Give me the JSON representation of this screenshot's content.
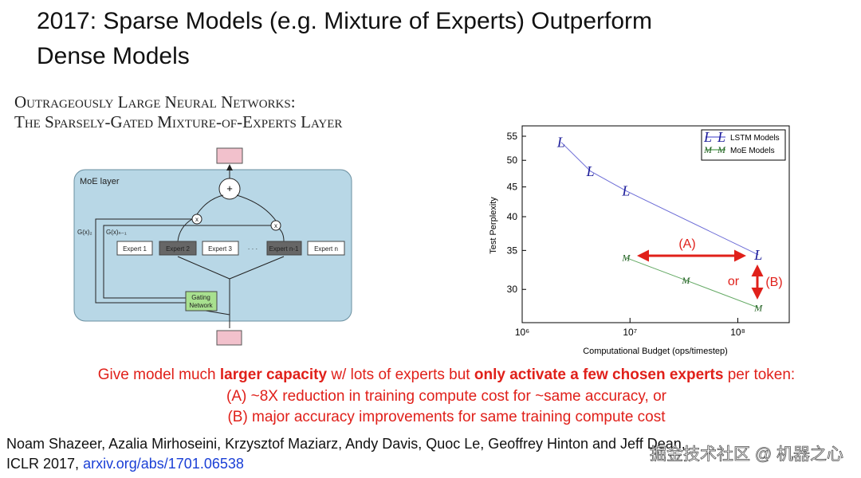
{
  "title": [
    "2017: Sparse Models (e.g. Mixture of Experts) Outperform",
    "Dense Models"
  ],
  "paper_title": [
    "Outrageously Large Neural Networks:",
    "The Sparsely-Gated Mixture-of-Experts Layer"
  ],
  "diagram": {
    "layer_label": "MoE layer",
    "sum": "+",
    "multiply": "x",
    "gate_labels": [
      "G(x)₂",
      "G(x)ₙ₋₁"
    ],
    "experts": [
      "Expert 1",
      "Expert 2",
      "Expert 3",
      "· · ·",
      "Expert n-1",
      "Expert n"
    ],
    "gating": [
      "Gating",
      "Network"
    ]
  },
  "chart_data": {
    "type": "line",
    "xlabel": "Computational Budget (ops/timestep)",
    "ylabel": "Test Perplexity",
    "xscale": "log",
    "yscale": "log",
    "xlim": [
      1000000,
      300000000
    ],
    "ylim": [
      26.3,
      57.3
    ],
    "xticks": [
      {
        "value": 1000000,
        "label": "10⁶"
      },
      {
        "value": 10000000,
        "label": "10⁷"
      },
      {
        "value": 100000000,
        "label": "10⁸"
      }
    ],
    "yticks": [
      30,
      35,
      40,
      45,
      50,
      55
    ],
    "legend": "upper right",
    "series": [
      {
        "name": "LSTM Models",
        "color": "#3a3ac8",
        "marker": "L",
        "x": [
          2300000,
          4300000,
          9200000,
          155000000
        ],
        "values": [
          53.7,
          47.9,
          44.3,
          34.4
        ]
      },
      {
        "name": "MoE Models",
        "color": "#2e8b2e",
        "marker": "M",
        "x": [
          9200000,
          33000000,
          155000000
        ],
        "values": [
          34.0,
          31.1,
          27.9
        ]
      }
    ],
    "annotations": [
      "(A)",
      "or",
      "(B)"
    ]
  },
  "summary": [
    [
      {
        "text": "Give model much ",
        "bold": false
      },
      {
        "text": "larger capacity",
        "bold": true
      },
      {
        "text": " w/ lots of experts but ",
        "bold": false
      },
      {
        "text": "only activate a few chosen experts",
        "bold": true
      },
      {
        "text": " per token:",
        "bold": false
      }
    ],
    [
      {
        "text": "(A) ~8X reduction in training compute cost for ~same accuracy, or",
        "bold": false
      }
    ],
    [
      {
        "text": "(B) major accuracy improvements for same training compute cost",
        "bold": false
      }
    ]
  ],
  "citation": {
    "authors": "Noam Shazeer, Azalia Mirhoseini, Krzysztof Maziarz, Andy Davis, Quoc Le, Geoffrey Hinton and Jeff Dean,",
    "venue": "ICLR 2017, ",
    "link": "arxiv.org/abs/1701.06538"
  },
  "watermark": "掘金技术社区 @ 机器之心"
}
